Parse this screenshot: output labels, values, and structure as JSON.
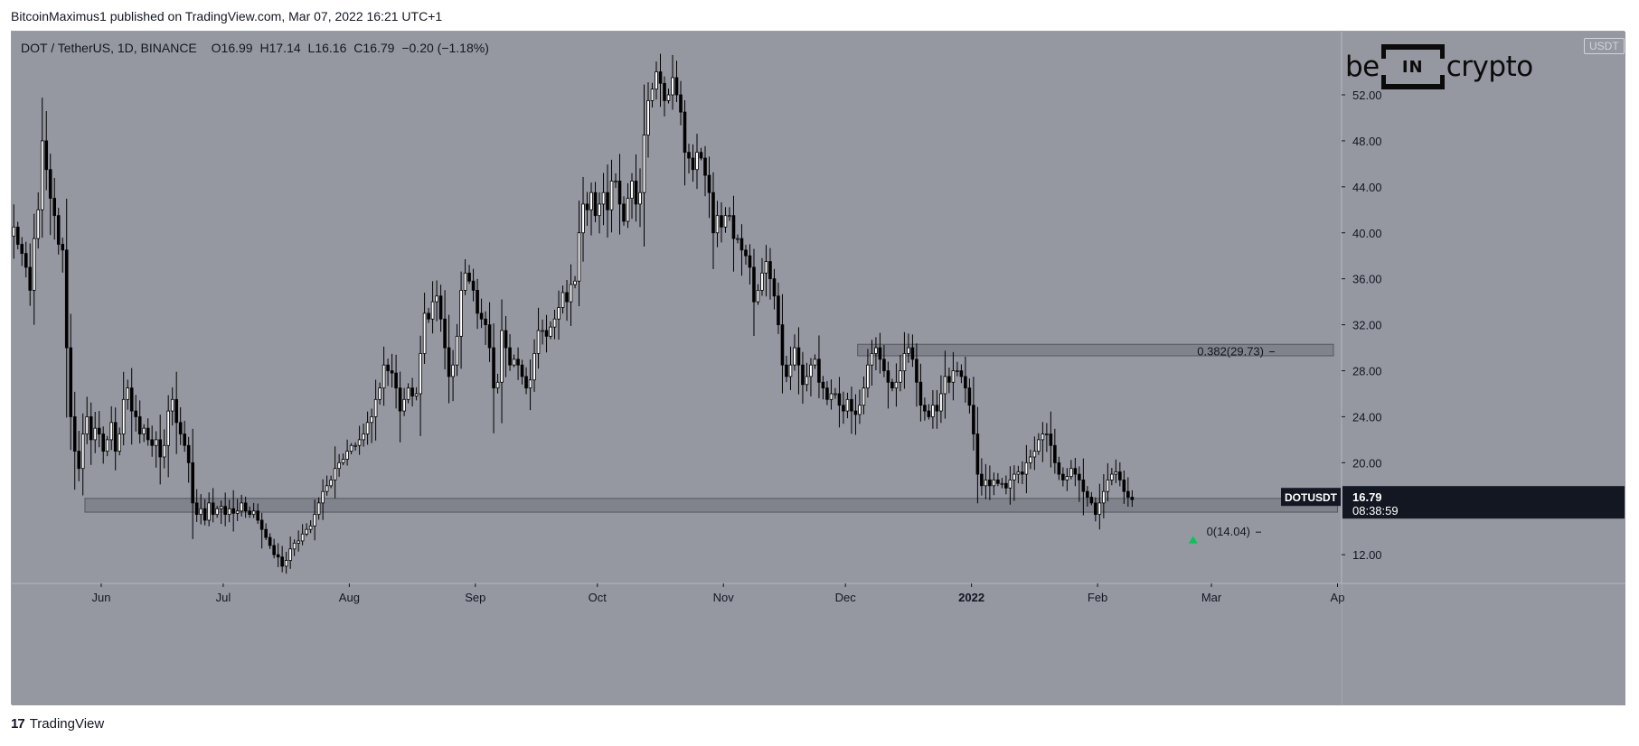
{
  "header": {
    "published_text": "BitcoinMaximus1 published on TradingView.com, Mar 07, 2022 16:21 UTC+1"
  },
  "legend": {
    "symbol": "DOT / TetherUS, 1D, BINANCE",
    "open_label": "O",
    "open": "16.99",
    "high_label": "H",
    "high": "17.14",
    "low_label": "L",
    "low": "16.16",
    "close_label": "C",
    "close": "16.79",
    "change": "−0.20 (−1.18%)"
  },
  "brand": {
    "left": "be",
    "box": "IN",
    "right": "crypto"
  },
  "currency": "USDT",
  "price_tag": {
    "symbol": "DOTUSDT",
    "price": "16.79",
    "countdown": "08:38:59"
  },
  "footer": {
    "logo_text": "17",
    "brand": "TradingView"
  },
  "colors": {
    "background": "#9598a1",
    "up_candle": "#ffffff",
    "down_candle": "#000000",
    "wick": "#000000",
    "zone": "#6f727b",
    "arrow": "#00c853",
    "price_tag_bg": "#131722"
  },
  "chart_data": {
    "type": "candlestick",
    "title": "DOT / TetherUS, 1D, BINANCE",
    "xlabel": "",
    "ylabel": "",
    "x_range": [
      "2022-05-10",
      "2022-04-02"
    ],
    "ylim": [
      9.5,
      57.5
    ],
    "y_ticks": [
      12,
      16,
      20,
      24,
      28,
      32,
      36,
      40,
      44,
      48,
      52
    ],
    "y_tick_labels": [
      "12.00",
      "",
      "20.00",
      "24.00",
      "28.00",
      "32.00",
      "36.00",
      "40.00",
      "44.00",
      "48.00",
      "52.00"
    ],
    "x_ticks": [
      {
        "label": "Jun",
        "date": "2021-06-01"
      },
      {
        "label": "Jul",
        "date": "2021-07-01"
      },
      {
        "label": "Aug",
        "date": "2021-08-01"
      },
      {
        "label": "Sep",
        "date": "2021-09-01"
      },
      {
        "label": "Oct",
        "date": "2021-10-01"
      },
      {
        "label": "Nov",
        "date": "2021-11-01"
      },
      {
        "label": "Dec",
        "date": "2021-12-01"
      },
      {
        "label": "2022",
        "date": "2022-01-01",
        "bold": true
      },
      {
        "label": "Feb",
        "date": "2022-02-01"
      },
      {
        "label": "Mar",
        "date": "2022-03-01"
      },
      {
        "label": "Ap",
        "date": "2022-04-01"
      }
    ],
    "start_date": "2021-05-10",
    "closes": [
      40.5,
      39.0,
      38.2,
      37.0,
      35.0,
      39.5,
      42.0,
      48.0,
      45.5,
      43.0,
      41.5,
      39.0,
      38.5,
      30.0,
      24.0,
      21.0,
      19.5,
      22.5,
      24.0,
      22.0,
      23.0,
      22.5,
      21.0,
      22.0,
      23.5,
      21.0,
      22.5,
      25.5,
      26.5,
      24.5,
      24.0,
      22.5,
      23.0,
      22.0,
      21.5,
      22.0,
      20.5,
      21.5,
      24.5,
      25.5,
      23.5,
      22.5,
      21.5,
      20.0,
      16.5,
      15.5,
      16.0,
      15.0,
      16.5,
      15.5,
      16.0,
      16.2,
      15.5,
      16.0,
      15.6,
      15.8,
      16.5,
      15.8,
      15.5,
      15.8,
      15.0,
      14.2,
      13.5,
      12.8,
      12.0,
      11.8,
      11.0,
      11.5,
      12.5,
      13.0,
      13.2,
      13.8,
      14.2,
      14.5,
      15.5,
      16.5,
      17.5,
      18.0,
      18.5,
      19.5,
      20.0,
      20.3,
      21.0,
      21.5,
      21.5,
      22.0,
      22.5,
      23.5,
      24.0,
      25.5,
      26.5,
      28.5,
      28.0,
      27.8,
      26.5,
      24.5,
      25.5,
      26.5,
      25.8,
      26.0,
      29.5,
      33.0,
      32.5,
      34.0,
      34.5,
      32.5,
      30.0,
      27.5,
      28.5,
      31.0,
      35.0,
      36.5,
      35.8,
      35.0,
      33.0,
      32.5,
      32.0,
      30.0,
      26.5,
      27.0,
      31.5,
      30.0,
      28.5,
      29.0,
      28.5,
      27.5,
      26.5,
      27.2,
      29.5,
      31.5,
      31.5,
      31.0,
      31.8,
      32.5,
      33.5,
      34.8,
      34.0,
      35.5,
      35.8,
      40.0,
      42.5,
      42.0,
      43.5,
      41.5,
      42.5,
      43.5,
      42.0,
      44.5,
      44.5,
      42.5,
      41.0,
      43.0,
      44.5,
      42.5,
      43.5,
      48.5,
      51.5,
      52.5,
      54.0,
      53.0,
      51.5,
      52.0,
      53.5,
      52.0,
      50.5,
      47.0,
      46.5,
      45.5,
      47.0,
      46.5,
      45.0,
      43.5,
      40.0,
      41.5,
      40.5,
      41.5,
      41.5,
      39.5,
      39.5,
      38.5,
      38.0,
      37.0,
      34.0,
      35.0,
      36.5,
      37.5,
      36.0,
      34.5,
      32.0,
      28.5,
      27.5,
      28.5,
      30.0,
      28.5,
      26.8,
      27.5,
      28.5,
      29.0,
      27.0,
      26.5,
      25.5,
      26.0,
      26.0,
      25.0,
      24.5,
      25.5,
      24.5,
      24.2,
      25.0,
      26.5,
      28.5,
      29.5,
      30.0,
      29.0,
      28.0,
      27.0,
      26.5,
      27.0,
      28.0,
      29.5,
      30.0,
      29.0,
      27.0,
      25.0,
      24.5,
      24.0,
      25.0,
      24.5,
      26.0,
      27.5,
      27.0,
      28.0,
      28.0,
      27.5,
      26.5,
      25.0,
      22.5,
      19.0,
      18.0,
      18.5,
      18.0,
      18.5,
      18.2,
      18.2,
      17.8,
      18.5,
      19.0,
      19.2,
      19.0,
      20.0,
      20.5,
      21.0,
      22.0,
      22.5,
      22.5,
      21.5,
      20.0,
      19.0,
      18.5,
      18.8,
      19.5,
      19.0,
      18.5,
      17.5,
      17.0,
      16.5,
      15.5,
      16.5,
      17.5,
      18.5,
      19.0,
      19.2,
      18.5,
      17.5,
      17.0,
      16.79
    ],
    "last_price": 16.79,
    "annotations": [
      {
        "type": "zone",
        "from_date": "2021-05-28",
        "to_date": "2022-04-01",
        "y_low": 15.7,
        "y_high": 16.9
      },
      {
        "type": "zone",
        "from_date": "2021-12-04",
        "to_date": "2022-03-31",
        "y_low": 29.3,
        "y_high": 30.3
      },
      {
        "type": "fib_label",
        "text": "0.382(29.73)",
        "value": 29.73
      },
      {
        "type": "fib_label",
        "text": "0(14.04)",
        "value": 14.04
      },
      {
        "type": "up_arrow",
        "date": "2022-02-24",
        "value": 13.3
      }
    ]
  }
}
